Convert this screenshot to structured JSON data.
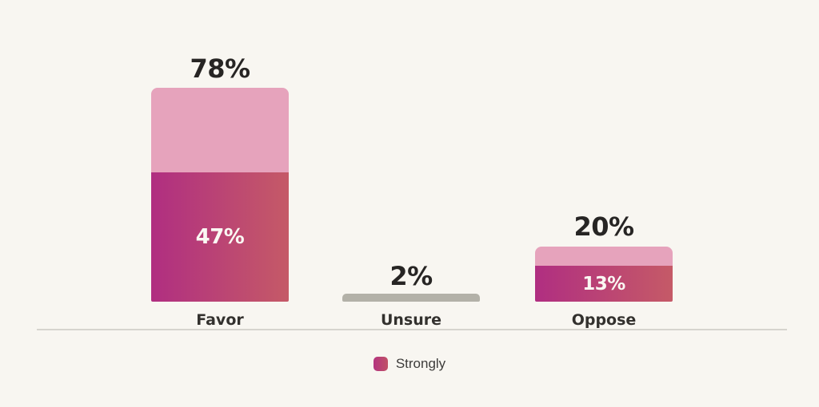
{
  "chart_data": {
    "type": "bar",
    "subtype": "stacked",
    "title": "",
    "categories": [
      "Favor",
      "Unsure",
      "Oppose"
    ],
    "totals": [
      78,
      2,
      20
    ],
    "total_labels": [
      "78%",
      "2%",
      "20%"
    ],
    "series": [
      {
        "name": "Strongly",
        "values": [
          47,
          null,
          13
        ],
        "labels": [
          "47%",
          null,
          "13%"
        ]
      }
    ],
    "ylim": [
      0,
      100
    ],
    "grid": false,
    "baseline_axis": true,
    "legend": {
      "position": "bottom-center",
      "items": [
        {
          "label": "Strongly"
        }
      ]
    },
    "colors": {
      "background": "#f8f6f1",
      "bar_top_light_pink": "#e6a3bc",
      "bar_strongly_gradient_left": "#b02e81",
      "bar_strongly_gradient_right": "#c55a67",
      "bar_unsure_gray": "#b3b1a8",
      "axis_line": "#d6d4ce",
      "value_label_text": "#272524",
      "category_label_text": "#33312e",
      "in_bar_text": "#faf8f3",
      "legend_text": "#3d3c3a"
    }
  }
}
